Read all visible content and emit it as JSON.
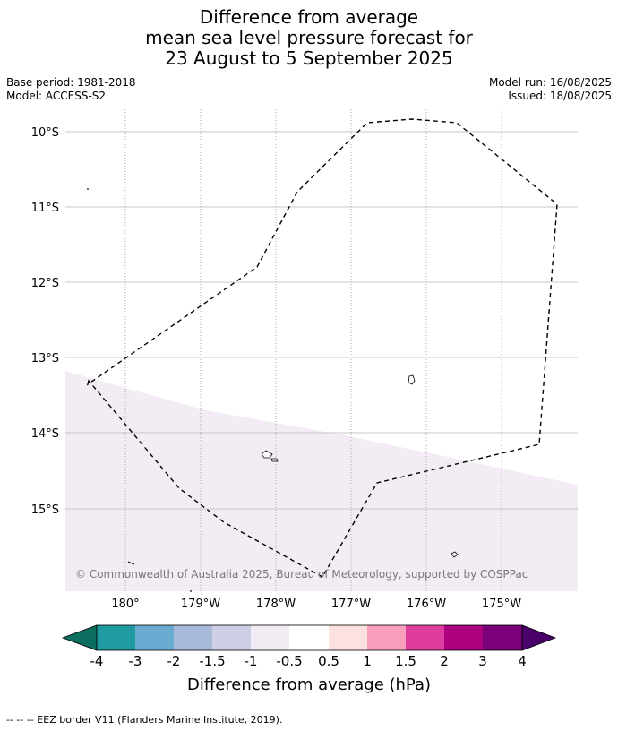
{
  "title": {
    "line1": "Difference from average",
    "line2": "mean sea level pressure forecast for",
    "line3": "23 August to 5 September 2025"
  },
  "meta": {
    "base_period": "Base period: 1981-2018",
    "model": "Model: ACCESS-S2",
    "model_run": "Model run: 16/08/2025",
    "issued": "Issued: 18/08/2025"
  },
  "map": {
    "lat_labels": [
      "10°S",
      "11°S",
      "12°S",
      "13°S",
      "14°S",
      "15°S"
    ],
    "lon_labels": [
      "180°",
      "179°W",
      "178°W",
      "177°W",
      "176°W",
      "175°W"
    ],
    "copyright": "© Commonwealth of Australia 2025, Bureau of Meteorology, supported by COSPPac",
    "shaded_color": "#f3ecf5"
  },
  "colorbar": {
    "title": "Difference from average (hPa)",
    "tick_labels": [
      "-4",
      "-3",
      "-2",
      "-1.5",
      "-1",
      "-0.5",
      "0.5",
      "1",
      "1.5",
      "2",
      "3",
      "4"
    ],
    "colors": [
      "#0c6e5f",
      "#1f9aa0",
      "#6aabd2",
      "#a8b9d9",
      "#ceceE5",
      "#f3ecf5",
      "#ffffff",
      "#fde0e0",
      "#f99fbe",
      "#df3d9e",
      "#ad0180",
      "#7a017a",
      "#4a006a"
    ]
  },
  "footer": "-- -- -- EEZ border V11 (Flanders Marine Institute, 2019)."
}
